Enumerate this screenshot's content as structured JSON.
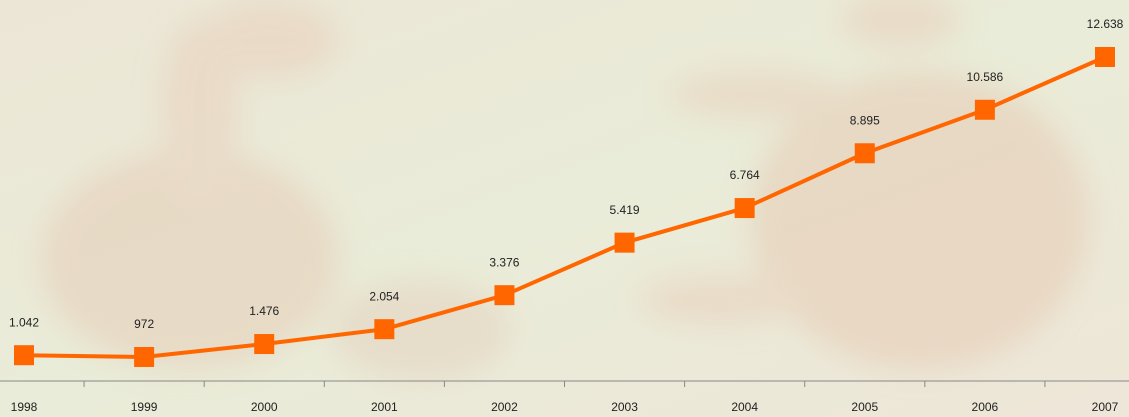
{
  "chart_data": {
    "type": "line",
    "categories": [
      "1998",
      "1999",
      "2000",
      "2001",
      "2002",
      "2003",
      "2004",
      "2005",
      "2006",
      "2007"
    ],
    "values": [
      1042,
      972,
      1476,
      2054,
      3376,
      5419,
      6764,
      8895,
      10586,
      12638
    ],
    "value_labels": [
      "1.042",
      "972",
      "1.476",
      "2.054",
      "3.376",
      "5.419",
      "6.764",
      "8.895",
      "10.586",
      "12.638"
    ],
    "color": "#ff6600"
  }
}
